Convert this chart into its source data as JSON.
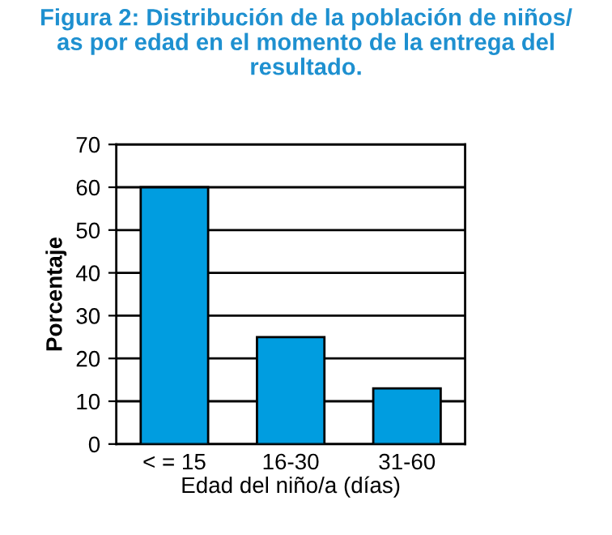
{
  "chart_data": {
    "type": "bar",
    "title": "Figura 2: Distribución de la población de niños/\nas por edad en el momento de la entrega del\nresultado.",
    "xlabel": "Edad del niño/a (días)",
    "ylabel": "Porcentaje",
    "categories": [
      "< = 15",
      "16-30",
      "31-60"
    ],
    "values": [
      60,
      25,
      13
    ],
    "color": "#009de0",
    "ylim": [
      0,
      70
    ],
    "yticks": [
      0,
      10,
      20,
      30,
      40,
      50,
      60,
      70
    ],
    "grid": "y"
  }
}
